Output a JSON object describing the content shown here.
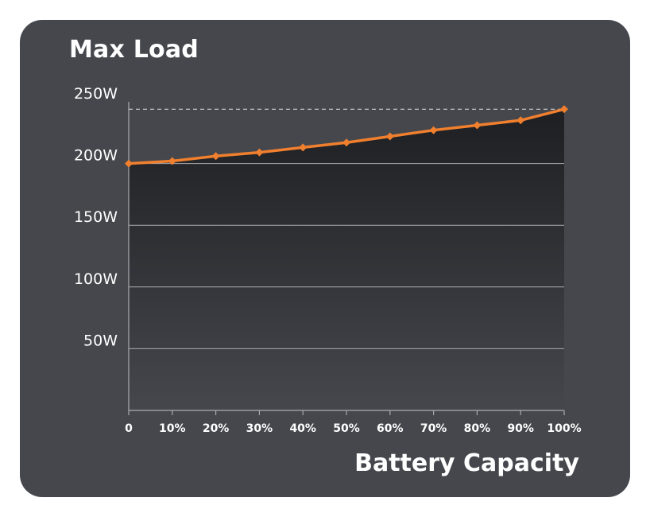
{
  "chart_data": {
    "type": "line",
    "title": "Max Load",
    "xlabel": "Battery Capacity",
    "ylabel": "",
    "categories": [
      "0",
      "10%",
      "20%",
      "30%",
      "40%",
      "50%",
      "60%",
      "70%",
      "80%",
      "90%",
      "100%"
    ],
    "series": [
      {
        "values": [
          200,
          202,
          206,
          209,
          213,
          217,
          222,
          227,
          231,
          235,
          244
        ]
      }
    ],
    "yticks": [
      {
        "value": 50,
        "label": "50W"
      },
      {
        "value": 100,
        "label": "100W"
      },
      {
        "value": 150,
        "label": "150W"
      },
      {
        "value": 200,
        "label": "200W"
      },
      {
        "value": 250,
        "label": "250W"
      }
    ],
    "ylim": [
      0,
      250
    ],
    "reference_line": 244,
    "grid": true,
    "colors": {
      "card": "#45474d",
      "line": "#f07f2e",
      "grid": "#a9abaf",
      "text": "#ffffff"
    }
  }
}
